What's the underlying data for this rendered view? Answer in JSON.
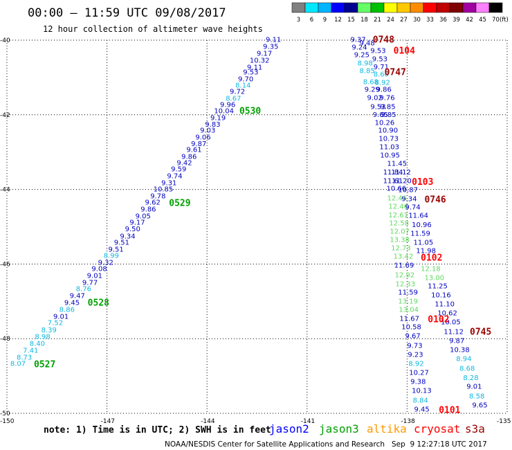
{
  "header": {
    "title": "00:00 – 11:59 UTC 09/08/2017",
    "subtitle": "12 hour collection of altimeter wave heights"
  },
  "color_scale": {
    "unit": "(ft)",
    "items": [
      {
        "label": "3",
        "color": "#808080"
      },
      {
        "label": "6",
        "color": "#00e8ff"
      },
      {
        "label": "9",
        "color": "#00b4ff"
      },
      {
        "label": "12",
        "color": "#0000ff"
      },
      {
        "label": "15",
        "color": "#000090"
      },
      {
        "label": "18",
        "color": "#66ff66"
      },
      {
        "label": "21",
        "color": "#00c000"
      },
      {
        "label": "24",
        "color": "#ffff00"
      },
      {
        "label": "27",
        "color": "#ffc800"
      },
      {
        "label": "30",
        "color": "#ff8c00"
      },
      {
        "label": "33",
        "color": "#ff0000"
      },
      {
        "label": "36",
        "color": "#c00000"
      },
      {
        "label": "39",
        "color": "#800000"
      },
      {
        "label": "42",
        "color": "#a000a0"
      },
      {
        "label": "45",
        "color": "#ff80ff"
      },
      {
        "label": "70",
        "color": "#000000"
      }
    ]
  },
  "swh_label_colors": [
    {
      "below": 9,
      "color": "#10b8e0"
    },
    {
      "below": 12,
      "color": "#0000c0"
    },
    {
      "below": 15,
      "color": "#60d860"
    }
  ],
  "satellite_colors": {
    "jason2": "#0000ff",
    "jason3": "#00a000",
    "altika": "#ff9900",
    "cryosat": "#ff0000",
    "s3a": "#990000"
  },
  "chart_data": {
    "type": "scatter",
    "xlim": [
      -150,
      -135
    ],
    "ylim": [
      -50,
      -40
    ],
    "grid": true,
    "x_ticks": [
      "-150",
      "-147",
      "-144",
      "-141",
      "-138",
      "-135"
    ],
    "y_ticks": [
      "-40",
      "-42",
      "-44",
      "-46",
      "-48",
      "-50"
    ],
    "swh_points": [
      [
        -142.24,
        -39.98,
        "9.11"
      ],
      [
        -142.32,
        -40.17,
        "9.35"
      ],
      [
        -142.51,
        -40.35,
        "9.17"
      ],
      [
        -142.72,
        -40.54,
        "10.32"
      ],
      [
        -142.8,
        -40.72,
        "9.11"
      ],
      [
        -142.92,
        -40.85,
        "9.53"
      ],
      [
        -143.07,
        -41.04,
        "9.70"
      ],
      [
        -143.15,
        -41.21,
        "8.14"
      ],
      [
        -143.32,
        -41.37,
        "9.72"
      ],
      [
        -143.44,
        -41.56,
        "8.67"
      ],
      [
        -143.61,
        -41.73,
        "9.96"
      ],
      [
        -143.79,
        -41.89,
        "10.04"
      ],
      [
        -143.9,
        -42.08,
        "9.19"
      ],
      [
        -144.06,
        -42.25,
        "9.83"
      ],
      [
        -144.21,
        -42.41,
        "9.03"
      ],
      [
        -144.35,
        -42.6,
        "9.06"
      ],
      [
        -144.48,
        -42.77,
        "9.87"
      ],
      [
        -144.62,
        -42.93,
        "9.61"
      ],
      [
        -144.77,
        -43.12,
        "9.86"
      ],
      [
        -144.91,
        -43.28,
        "9.42"
      ],
      [
        -145.08,
        -43.45,
        "9.59"
      ],
      [
        -145.2,
        -43.64,
        "9.74"
      ],
      [
        -145.37,
        -43.82,
        "9.31"
      ],
      [
        -145.61,
        -43.99,
        "10.85"
      ],
      [
        -145.7,
        -44.17,
        "9.78"
      ],
      [
        -145.86,
        -44.34,
        "9.62"
      ],
      [
        -145.99,
        -44.53,
        "9.86"
      ],
      [
        -146.15,
        -44.71,
        "9.05"
      ],
      [
        -146.32,
        -44.88,
        "9.17"
      ],
      [
        -146.46,
        -45.06,
        "9.50"
      ],
      [
        -146.61,
        -45.25,
        "9.34"
      ],
      [
        -146.79,
        -45.42,
        "9.51"
      ],
      [
        -146.96,
        -45.6,
        "9.51"
      ],
      [
        -147.1,
        -45.77,
        "8.99"
      ],
      [
        -147.27,
        -45.96,
        "9.32"
      ],
      [
        -147.46,
        -46.12,
        "9.08"
      ],
      [
        -147.6,
        -46.31,
        "9.01"
      ],
      [
        -147.74,
        -46.49,
        "9.77"
      ],
      [
        -147.93,
        -46.66,
        "8.76"
      ],
      [
        -148.12,
        -46.85,
        "9.47"
      ],
      [
        -148.28,
        -47.03,
        "9.45"
      ],
      [
        -148.43,
        -47.22,
        "8.86"
      ],
      [
        -148.61,
        -47.4,
        "9.01"
      ],
      [
        -148.78,
        -47.57,
        "7.52"
      ],
      [
        -148.97,
        -47.76,
        "8.39"
      ],
      [
        -149.16,
        -47.94,
        "8.98"
      ],
      [
        -149.32,
        -48.13,
        "8.40"
      ],
      [
        -149.52,
        -48.31,
        "7.41"
      ],
      [
        -149.71,
        -48.5,
        "8.73"
      ],
      [
        -149.9,
        -48.66,
        "8.07"
      ],
      [
        -139.7,
        -39.98,
        "9.37"
      ],
      [
        -139.43,
        -40.07,
        "9.48"
      ],
      [
        -139.66,
        -40.19,
        "9.24"
      ],
      [
        -139.1,
        -40.28,
        "9.53"
      ],
      [
        -139.59,
        -40.39,
        "9.25"
      ],
      [
        -139.05,
        -40.5,
        "9.53"
      ],
      [
        -139.49,
        -40.61,
        "8.98"
      ],
      [
        -139.01,
        -40.71,
        "9.71"
      ],
      [
        -139.43,
        -40.82,
        "8.85"
      ],
      [
        -139.01,
        -40.91,
        "8.60"
      ],
      [
        -139.32,
        -41.11,
        "8.68"
      ],
      [
        -138.97,
        -41.13,
        "8.92"
      ],
      [
        -139.28,
        -41.32,
        "9.29"
      ],
      [
        -138.93,
        -41.32,
        "9.86"
      ],
      [
        -139.2,
        -41.54,
        "9.02"
      ],
      [
        -138.83,
        -41.54,
        "9.76"
      ],
      [
        -139.1,
        -41.78,
        "9.53"
      ],
      [
        -138.81,
        -41.78,
        "9.85"
      ],
      [
        -139.03,
        -41.99,
        "9.05"
      ],
      [
        -138.79,
        -41.99,
        "9.85"
      ],
      [
        -138.97,
        -42.21,
        "10.26"
      ],
      [
        -138.87,
        -42.41,
        "10.90"
      ],
      [
        -138.85,
        -42.63,
        "10.73"
      ],
      [
        -138.83,
        -42.86,
        "11.03"
      ],
      [
        -138.81,
        -43.08,
        "10.95"
      ],
      [
        -138.6,
        -43.3,
        "11.45"
      ],
      [
        -138.72,
        -43.53,
        "11.84"
      ],
      [
        -138.48,
        -43.53,
        "11.12"
      ],
      [
        -138.72,
        -43.77,
        "11.61"
      ],
      [
        -138.46,
        -43.77,
        "11.20"
      ],
      [
        -138.62,
        -43.97,
        "10.66"
      ],
      [
        -138.27,
        -44.01,
        "10.87"
      ],
      [
        -138.17,
        -44.25,
        "9.34"
      ],
      [
        -138.6,
        -44.23,
        "12.46"
      ],
      [
        -138.56,
        -44.45,
        "12.46"
      ],
      [
        -138.06,
        -44.47,
        "9.74"
      ],
      [
        -138.56,
        -44.68,
        "12.61"
      ],
      [
        -137.96,
        -44.69,
        "11.64"
      ],
      [
        -138.54,
        -44.9,
        "12.58"
      ],
      [
        -137.86,
        -44.94,
        "10.96"
      ],
      [
        -138.52,
        -45.12,
        "12.07"
      ],
      [
        -137.9,
        -45.18,
        "11.59"
      ],
      [
        -138.52,
        -45.34,
        "13.38"
      ],
      [
        -137.81,
        -45.42,
        "11.05"
      ],
      [
        -138.48,
        -45.57,
        "12.73"
      ],
      [
        -137.73,
        -45.64,
        "11.98"
      ],
      [
        -138.41,
        -45.79,
        "13.42"
      ],
      [
        -138.39,
        -46.03,
        "11.69"
      ],
      [
        -137.59,
        -46.12,
        "12.18"
      ],
      [
        -138.37,
        -46.29,
        "12.92"
      ],
      [
        -137.48,
        -46.36,
        "13.00"
      ],
      [
        -138.35,
        -46.53,
        "12.33"
      ],
      [
        -137.38,
        -46.59,
        "11.25"
      ],
      [
        -138.27,
        -46.75,
        "11.59"
      ],
      [
        -137.28,
        -46.83,
        "10.16"
      ],
      [
        -138.27,
        -46.99,
        "13.19"
      ],
      [
        -137.17,
        -47.07,
        "11.10"
      ],
      [
        -138.25,
        -47.22,
        "13.04"
      ],
      [
        -137.09,
        -47.31,
        "10.62"
      ],
      [
        -138.23,
        -47.46,
        "11.67"
      ],
      [
        -136.99,
        -47.55,
        "10.05"
      ],
      [
        -138.17,
        -47.68,
        "10.58"
      ],
      [
        -136.9,
        -47.81,
        "11.12"
      ],
      [
        -138.06,
        -47.92,
        "9.67"
      ],
      [
        -136.74,
        -48.05,
        "9.87"
      ],
      [
        -138.0,
        -48.18,
        "9.73"
      ],
      [
        -136.72,
        -48.29,
        "10.38"
      ],
      [
        -137.98,
        -48.42,
        "9.23"
      ],
      [
        -136.53,
        -48.53,
        "8.94"
      ],
      [
        -137.96,
        -48.66,
        "8.92"
      ],
      [
        -136.43,
        -48.79,
        "8.68"
      ],
      [
        -137.94,
        -48.91,
        "10.27"
      ],
      [
        -136.32,
        -49.04,
        "8.28"
      ],
      [
        -137.9,
        -49.15,
        "9.38"
      ],
      [
        -136.22,
        -49.28,
        "9.01"
      ],
      [
        -137.86,
        -49.39,
        "10.13"
      ],
      [
        -136.14,
        -49.54,
        "8.58"
      ],
      [
        -137.83,
        -49.65,
        "8.84"
      ],
      [
        -136.05,
        -49.78,
        "9.65"
      ],
      [
        -137.79,
        -49.89,
        "9.45"
      ]
    ],
    "time_points": [
      [
        -143.03,
        -41.89,
        "0530",
        "jason3"
      ],
      [
        -145.14,
        -44.36,
        "0529",
        "jason3"
      ],
      [
        -147.58,
        -47.03,
        "0528",
        "jason3"
      ],
      [
        -149.19,
        -48.68,
        "0527",
        "jason3"
      ],
      [
        -139.03,
        -39.98,
        "0748",
        "s3a"
      ],
      [
        -138.41,
        -40.28,
        "0104",
        "cryosat"
      ],
      [
        -138.68,
        -40.85,
        "0747",
        "s3a"
      ],
      [
        -137.86,
        -43.79,
        "0103",
        "cryosat"
      ],
      [
        -137.48,
        -44.27,
        "0746",
        "s3a"
      ],
      [
        -137.59,
        -45.83,
        "0102",
        "cryosat"
      ],
      [
        -137.38,
        -47.48,
        "0102",
        "cryosat"
      ],
      [
        -136.12,
        -47.81,
        "0745",
        "s3a"
      ],
      [
        -137.05,
        -49.91,
        "0101",
        "cryosat"
      ]
    ]
  },
  "note": "note: 1) Time is in UTC; 2) SWH is in feet",
  "legend": [
    {
      "key": "jason2",
      "label": "jason2"
    },
    {
      "key": "jason3",
      "label": "jason3"
    },
    {
      "key": "altika",
      "label": "altika"
    },
    {
      "key": "cryosat",
      "label": "cryosat"
    },
    {
      "key": "s3a",
      "label": "s3a"
    }
  ],
  "footer": "NOAA/NESDIS Center for Satellite Applications and Research   Sep  9 12:27:18 UTC 2017"
}
